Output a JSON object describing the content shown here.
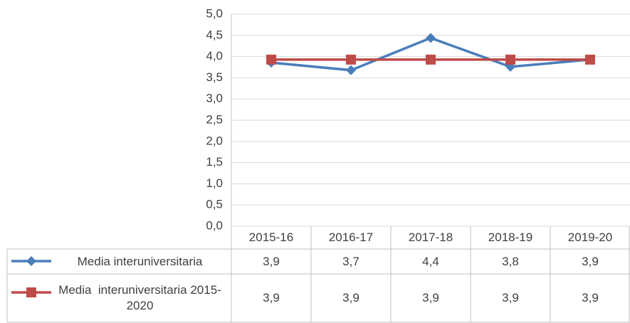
{
  "chart_data": {
    "type": "line",
    "categories": [
      "2015-16",
      "2016-17",
      "2017-18",
      "2018-19",
      "2019-20"
    ],
    "series": [
      {
        "name": "Media interuniversitaria",
        "color": "#4a7ebb",
        "marker": "diamond",
        "values": [
          3.86,
          3.68,
          4.44,
          3.76,
          3.93
        ],
        "value_labels": [
          "3,9",
          "3,7",
          "4,4",
          "3,8",
          "3,9"
        ]
      },
      {
        "name": "Media  interuniversitaria 2015-2020",
        "color": "#be4b48",
        "marker": "square",
        "values": [
          3.93,
          3.93,
          3.93,
          3.93,
          3.93
        ],
        "value_labels": [
          "3,9",
          "3,9",
          "3,9",
          "3,9",
          "3,9"
        ]
      }
    ],
    "ylim": [
      0,
      5
    ],
    "yticks": [
      {
        "value": 0,
        "label": "0,0"
      },
      {
        "value": 0.5,
        "label": "0,5"
      },
      {
        "value": 1,
        "label": "1,0"
      },
      {
        "value": 1.5,
        "label": "1,5"
      },
      {
        "value": 2,
        "label": "2,0"
      },
      {
        "value": 2.5,
        "label": "2,5"
      },
      {
        "value": 3,
        "label": "3,0"
      },
      {
        "value": 3.5,
        "label": "3,5"
      },
      {
        "value": 4,
        "label": "4,0"
      },
      {
        "value": 4.5,
        "label": "4,5"
      },
      {
        "value": 5,
        "label": "5,0"
      }
    ],
    "grid": true
  }
}
